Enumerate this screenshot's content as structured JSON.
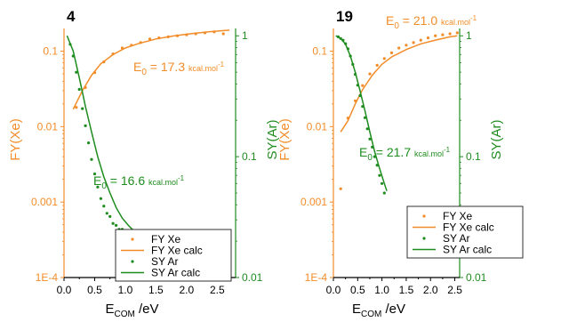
{
  "colors": {
    "fy": "#F28C28",
    "sy": "#1E8C1E",
    "axis": "#000000"
  },
  "chart_data": [
    {
      "type": "scatter",
      "panel_label": "4",
      "xlabel_main": "E",
      "xlabel_sub": "COM",
      "xlabel_unit": " /eV",
      "ylabel_left": "FY(Xe)",
      "ylabel_right": "SY(Ar)",
      "x_ticks": [
        "0.0",
        "0.5",
        "1.0",
        "1.5",
        "2.0",
        "2.5"
      ],
      "xlim": [
        0,
        2.8
      ],
      "ylim_left": [
        0.0001,
        0.2
      ],
      "left_ticks": [
        {
          "v": 0.1,
          "label": "0.1"
        },
        {
          "v": 0.01,
          "label": "0.01"
        },
        {
          "v": 0.001,
          "label": "0.001"
        },
        {
          "v": 0.0001,
          "label": "1E-4"
        }
      ],
      "ylim_right": [
        0.01,
        1.15
      ],
      "right_ticks": [
        {
          "v": 1,
          "label": "1"
        },
        {
          "v": 0.1,
          "label": "0.1"
        },
        {
          "v": 0.01,
          "label": "0.01"
        }
      ],
      "annotations": [
        {
          "series": "fy",
          "pre": "E",
          "sub": "0",
          "mid": " = 17.3 ",
          "unit": "kcal.mol",
          "sup": "-1"
        },
        {
          "series": "sy",
          "pre": "E",
          "sub": "0",
          "mid": " = 16.6 ",
          "unit": "kcal.mol",
          "sup": "-1"
        }
      ],
      "legend_location": "lower-right",
      "legend": [
        "FY Xe",
        "FY Xe calc",
        "SY Ar",
        "SY Ar calc"
      ],
      "series": [
        {
          "name": "FY Xe",
          "axis": "left",
          "style": "points",
          "x": [
            0.2,
            0.35,
            0.5,
            0.65,
            0.8,
            0.95,
            1.1,
            1.25,
            1.4,
            1.55,
            1.7,
            1.85,
            2.0,
            2.15,
            2.3,
            2.45,
            2.6
          ],
          "y": [
            0.018,
            0.033,
            0.052,
            0.072,
            0.092,
            0.11,
            0.12,
            0.13,
            0.145,
            0.15,
            0.155,
            0.16,
            0.165,
            0.17,
            0.175,
            0.18,
            0.17
          ]
        },
        {
          "name": "FY Xe calc",
          "axis": "left",
          "style": "line",
          "x": [
            0.15,
            0.3,
            0.45,
            0.6,
            0.8,
            1.0,
            1.2,
            1.5,
            1.8,
            2.1,
            2.4,
            2.7
          ],
          "y": [
            0.017,
            0.03,
            0.048,
            0.068,
            0.09,
            0.11,
            0.125,
            0.145,
            0.16,
            0.172,
            0.182,
            0.19
          ]
        },
        {
          "name": "SY Ar",
          "axis": "right",
          "style": "points",
          "x": [
            0.1,
            0.15,
            0.2,
            0.25,
            0.3,
            0.35,
            0.4,
            0.45,
            0.5,
            0.55,
            0.6,
            0.65,
            0.7,
            0.75,
            0.8,
            0.85,
            0.9,
            0.95,
            1.0,
            1.05,
            1.1
          ],
          "y": [
            0.85,
            0.68,
            0.5,
            0.36,
            0.25,
            0.18,
            0.13,
            0.095,
            0.072,
            0.056,
            0.045,
            0.039,
            0.034,
            0.032,
            0.028,
            0.027,
            0.025,
            0.025,
            0.024,
            0.024,
            0.023
          ]
        },
        {
          "name": "SY Ar calc",
          "axis": "right",
          "style": "line",
          "x": [
            0.05,
            0.15,
            0.25,
            0.35,
            0.45,
            0.55,
            0.65,
            0.75,
            0.85,
            0.95,
            1.05,
            1.15
          ],
          "y": [
            1.0,
            0.75,
            0.45,
            0.26,
            0.16,
            0.1,
            0.068,
            0.05,
            0.038,
            0.031,
            0.027,
            0.024
          ]
        }
      ]
    },
    {
      "type": "scatter",
      "panel_label": "19",
      "xlabel_main": "E",
      "xlabel_sub": "COM",
      "xlabel_unit": " /eV",
      "ylabel_left": "FY(Xe)",
      "ylabel_right": "SY(Ar)",
      "x_ticks": [
        "0.0",
        "0.5",
        "1.0",
        "1.5",
        "2.0",
        "2.5"
      ],
      "xlim": [
        0,
        2.6
      ],
      "ylim_left": [
        0.0001,
        0.2
      ],
      "left_ticks": [
        {
          "v": 0.1,
          "label": "0.1"
        },
        {
          "v": 0.01,
          "label": "0.01"
        },
        {
          "v": 0.001,
          "label": "0.001"
        },
        {
          "v": 0.0001,
          "label": "1E-4"
        }
      ],
      "ylim_right": [
        0.01,
        1.15
      ],
      "right_ticks": [
        {
          "v": 1,
          "label": "1"
        },
        {
          "v": 0.1,
          "label": "0.1"
        },
        {
          "v": 0.01,
          "label": "0.01"
        }
      ],
      "annotations": [
        {
          "series": "fy",
          "pre": "E",
          "sub": "0",
          "mid": " = 21.0 ",
          "unit": "kcal.mol",
          "sup": "-1"
        },
        {
          "series": "sy",
          "pre": "E",
          "sub": "0",
          "mid": " = 21.7 ",
          "unit": "kcal.mol",
          "sup": "-1"
        }
      ],
      "legend_location": "lower-right",
      "legend": [
        "FY Xe",
        "FY Xe calc",
        "SY Ar",
        "SY Ar calc"
      ],
      "series": [
        {
          "name": "FY Xe",
          "axis": "left",
          "style": "points",
          "x": [
            0.15,
            0.3,
            0.45,
            0.6,
            0.75,
            0.9,
            1.05,
            1.2,
            1.35,
            1.5,
            1.65,
            1.8,
            1.95,
            2.1,
            2.25,
            2.4,
            2.55
          ],
          "y": [
            0.0015,
            0.013,
            0.022,
            0.035,
            0.05,
            0.065,
            0.08,
            0.095,
            0.11,
            0.12,
            0.13,
            0.14,
            0.15,
            0.16,
            0.165,
            0.17,
            0.175
          ]
        },
        {
          "name": "FY Xe calc",
          "axis": "left",
          "style": "line",
          "x": [
            0.15,
            0.3,
            0.45,
            0.6,
            0.8,
            1.0,
            1.2,
            1.5,
            1.8,
            2.1,
            2.4,
            2.55
          ],
          "y": [
            0.0085,
            0.012,
            0.02,
            0.031,
            0.048,
            0.067,
            0.084,
            0.105,
            0.125,
            0.14,
            0.155,
            0.16
          ]
        },
        {
          "name": "SY Ar",
          "axis": "right",
          "style": "points",
          "x": [
            0.1,
            0.15,
            0.2,
            0.25,
            0.3,
            0.35,
            0.4,
            0.45,
            0.5,
            0.55,
            0.6,
            0.65,
            0.7,
            0.75,
            0.8,
            0.85,
            0.9,
            0.95,
            1.0,
            1.05
          ],
          "y": [
            0.98,
            0.95,
            0.92,
            0.86,
            0.78,
            0.68,
            0.58,
            0.48,
            0.39,
            0.32,
            0.26,
            0.21,
            0.17,
            0.14,
            0.12,
            0.1,
            0.085,
            0.07,
            0.06,
            0.05
          ]
        },
        {
          "name": "SY Ar calc",
          "axis": "right",
          "style": "line",
          "x": [
            0.05,
            0.15,
            0.25,
            0.35,
            0.45,
            0.55,
            0.65,
            0.75,
            0.85,
            0.95,
            1.05,
            1.1
          ],
          "y": [
            1.0,
            0.95,
            0.85,
            0.68,
            0.5,
            0.35,
            0.24,
            0.16,
            0.11,
            0.08,
            0.06,
            0.052
          ]
        }
      ]
    }
  ]
}
